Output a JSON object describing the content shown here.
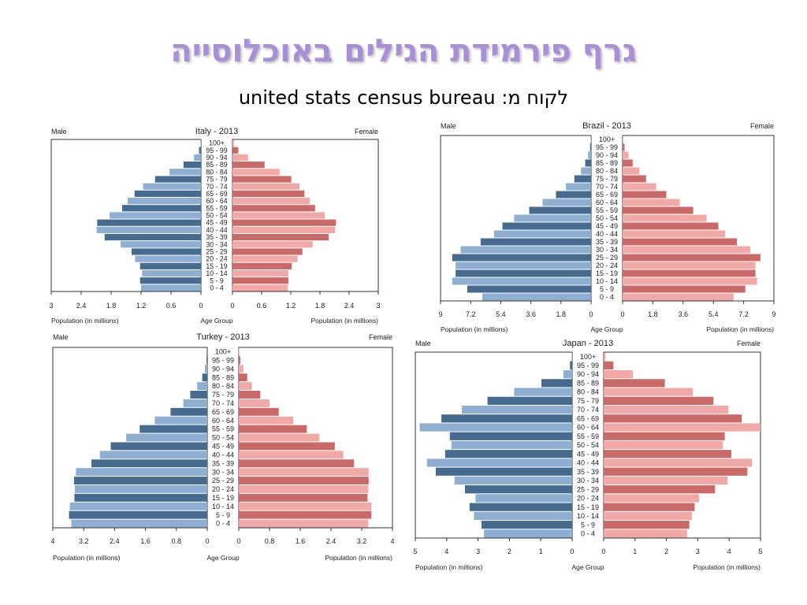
{
  "slide": {
    "title": "גרף פירמידת הגילים באוכלוסייה",
    "subtitle": "united stats census bureau :לקוח מ"
  },
  "colors": {
    "male_dark": "#466b8f",
    "male_light": "#8eaed2",
    "female_dark": "#c96a68",
    "female_light": "#f0a9a7",
    "title": "#a88fd6"
  },
  "chart_data": [
    {
      "type": "bar",
      "title": "Italy - 2013",
      "male_label": "Male",
      "female_label": "Female",
      "xlabel_left": "Population (in millions)",
      "xlabel_center": "Age Group",
      "xlabel_right": "Population (in millions)",
      "categories": [
        "100+",
        "95 - 99",
        "90 - 94",
        "85 - 89",
        "80 - 84",
        "75 - 79",
        "70 - 74",
        "65 - 69",
        "60 - 64",
        "55 - 59",
        "50 - 54",
        "45 - 49",
        "40 - 44",
        "35 - 39",
        "30 - 34",
        "25 - 29",
        "20 - 24",
        "15 - 19",
        "10 - 14",
        "5 - 9",
        "0 - 4"
      ],
      "xlim": [
        0,
        3
      ],
      "ticks": [
        "3",
        "2.4",
        "1.8",
        "1.2",
        "0.6",
        "0"
      ],
      "ticks_right": [
        "0",
        "0.6",
        "1.2",
        "1.8",
        "2.4",
        "3"
      ],
      "series": [
        {
          "name": "Male",
          "values": [
            0.01,
            0.04,
            0.14,
            0.35,
            0.63,
            0.92,
            1.16,
            1.33,
            1.47,
            1.58,
            1.83,
            2.08,
            2.09,
            1.93,
            1.61,
            1.39,
            1.32,
            1.22,
            1.18,
            1.22,
            1.2
          ]
        },
        {
          "name": "Female",
          "values": [
            0.03,
            0.12,
            0.32,
            0.66,
            0.97,
            1.21,
            1.38,
            1.48,
            1.59,
            1.7,
            1.9,
            2.13,
            2.11,
            1.98,
            1.65,
            1.44,
            1.34,
            1.22,
            1.15,
            1.15,
            1.14
          ]
        }
      ]
    },
    {
      "type": "bar",
      "title": "Brazil - 2013",
      "male_label": "Male",
      "female_label": "Female",
      "xlabel_left": "Population (in millions)",
      "xlabel_center": "Age Group",
      "xlabel_right": "Population (in millions)",
      "categories": [
        "100+",
        "95 - 99",
        "90 - 94",
        "85 - 89",
        "80 - 84",
        "75 - 79",
        "70 - 74",
        "65 - 69",
        "60 - 64",
        "55 - 59",
        "50 - 54",
        "45 - 49",
        "40 - 44",
        "35 - 39",
        "30 - 34",
        "25 - 29",
        "20 - 24",
        "15 - 19",
        "10 - 14",
        "5 - 9",
        "0 - 4"
      ],
      "xlim": [
        0,
        9
      ],
      "ticks": [
        "9",
        "7.2",
        "5.4",
        "3.6",
        "1.8",
        "0"
      ],
      "ticks_right": [
        "0",
        "1.8",
        "3.6",
        "5.4",
        "7.2",
        "9"
      ],
      "series": [
        {
          "name": "Male",
          "values": [
            0.02,
            0.06,
            0.18,
            0.35,
            0.6,
            1.0,
            1.5,
            2.1,
            2.9,
            3.7,
            4.6,
            5.3,
            5.8,
            6.6,
            7.8,
            8.3,
            8.1,
            8.1,
            8.3,
            7.4,
            6.5
          ]
        },
        {
          "name": "Female",
          "values": [
            0.04,
            0.12,
            0.35,
            0.6,
            1.0,
            1.4,
            2.0,
            2.6,
            3.4,
            4.2,
            5.0,
            5.7,
            6.1,
            6.8,
            7.6,
            8.2,
            7.9,
            7.9,
            8.0,
            7.3,
            6.6
          ]
        }
      ]
    },
    {
      "type": "bar",
      "title": "Turkey - 2013",
      "male_label": "Male",
      "female_label": "Female",
      "xlabel_left": "Population (in millions)",
      "xlabel_center": "Age Group",
      "xlabel_right": "Population (in millions)",
      "categories": [
        "100+",
        "95 - 99",
        "90 - 94",
        "85 - 89",
        "80 - 84",
        "75 - 79",
        "70 - 74",
        "65 - 69",
        "60 - 64",
        "55 - 59",
        "50 - 54",
        "45 - 49",
        "40 - 44",
        "35 - 39",
        "30 - 34",
        "25 - 29",
        "20 - 24",
        "15 - 19",
        "10 - 14",
        "5 - 9",
        "0 - 4"
      ],
      "xlim": [
        0,
        4
      ],
      "ticks": [
        "4",
        "3.2",
        "2.4",
        "1.6",
        "0.8",
        "0"
      ],
      "ticks_right": [
        "0",
        "0.8",
        "1.6",
        "2.4",
        "3.2",
        "4"
      ],
      "series": [
        {
          "name": "Male",
          "values": [
            0.0,
            0.02,
            0.06,
            0.13,
            0.26,
            0.44,
            0.62,
            0.95,
            1.36,
            1.75,
            2.1,
            2.5,
            2.78,
            3.0,
            3.4,
            3.45,
            3.43,
            3.44,
            3.56,
            3.58,
            3.52
          ]
        },
        {
          "name": "Female",
          "values": [
            0.01,
            0.04,
            0.12,
            0.22,
            0.34,
            0.56,
            0.8,
            1.04,
            1.42,
            1.77,
            2.1,
            2.5,
            2.72,
            3.0,
            3.38,
            3.38,
            3.37,
            3.35,
            3.45,
            3.45,
            3.37
          ]
        }
      ]
    },
    {
      "type": "bar",
      "title": "Japan - 2013",
      "male_label": "Male",
      "female_label": "Female",
      "xlabel_left": "Population (in millions)",
      "xlabel_center": "Age Group",
      "xlabel_right": "Population (in millions)",
      "categories": [
        "100+",
        "95 - 99",
        "90 - 94",
        "85 - 89",
        "80 - 84",
        "75 - 79",
        "70 - 74",
        "65 - 69",
        "60 - 64",
        "55 - 59",
        "50 - 54",
        "45 - 49",
        "40 - 44",
        "35 - 39",
        "30 - 34",
        "25 - 29",
        "20 - 24",
        "15 - 19",
        "10 - 14",
        "5 - 9",
        "0 - 4"
      ],
      "xlim": [
        0,
        5
      ],
      "ticks": [
        "5",
        "4",
        "3",
        "2",
        "1",
        "0"
      ],
      "ticks_right": [
        "0",
        "1",
        "2",
        "3",
        "4",
        "5"
      ],
      "series": [
        {
          "name": "Male",
          "values": [
            0.01,
            0.07,
            0.28,
            0.98,
            1.85,
            2.7,
            3.52,
            4.17,
            4.86,
            3.9,
            3.85,
            4.05,
            4.63,
            4.35,
            3.75,
            3.42,
            3.08,
            3.27,
            3.13,
            2.89,
            2.81
          ]
        },
        {
          "name": "Female",
          "values": [
            0.06,
            0.31,
            0.93,
            1.95,
            2.84,
            3.5,
            3.98,
            4.4,
            5.0,
            3.86,
            3.8,
            4.07,
            4.73,
            4.58,
            3.95,
            3.55,
            3.04,
            2.9,
            2.81,
            2.73,
            2.66
          ]
        }
      ]
    }
  ]
}
